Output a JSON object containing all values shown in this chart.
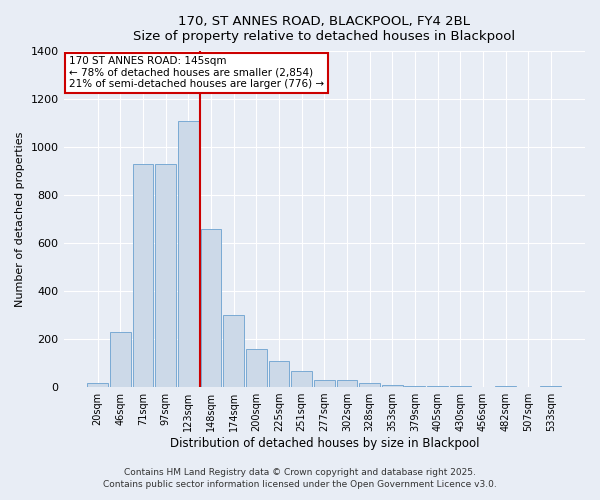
{
  "title_line1": "170, ST ANNES ROAD, BLACKPOOL, FY4 2BL",
  "title_line2": "Size of property relative to detached houses in Blackpool",
  "xlabel": "Distribution of detached houses by size in Blackpool",
  "ylabel": "Number of detached properties",
  "bar_labels": [
    "20sqm",
    "46sqm",
    "71sqm",
    "97sqm",
    "123sqm",
    "148sqm",
    "174sqm",
    "200sqm",
    "225sqm",
    "251sqm",
    "277sqm",
    "302sqm",
    "328sqm",
    "353sqm",
    "379sqm",
    "405sqm",
    "430sqm",
    "456sqm",
    "482sqm",
    "507sqm",
    "533sqm"
  ],
  "bar_values": [
    15,
    230,
    930,
    930,
    1110,
    660,
    300,
    160,
    110,
    65,
    30,
    30,
    15,
    10,
    5,
    5,
    5,
    0,
    5,
    0,
    5
  ],
  "bar_color": "#ccd9e8",
  "bar_edgecolor": "#7aaad4",
  "vline_color": "#cc0000",
  "annotation_title": "170 ST ANNES ROAD: 145sqm",
  "annotation_line2": "← 78% of detached houses are smaller (2,854)",
  "annotation_line3": "21% of semi-detached houses are larger (776) →",
  "annotation_box_color": "#ffffff",
  "annotation_box_edgecolor": "#cc0000",
  "ylim": [
    0,
    1400
  ],
  "yticks": [
    0,
    200,
    400,
    600,
    800,
    1000,
    1200,
    1400
  ],
  "footer_line1": "Contains HM Land Registry data © Crown copyright and database right 2025.",
  "footer_line2": "Contains public sector information licensed under the Open Government Licence v3.0.",
  "background_color": "#e8edf5",
  "plot_background": "#e8edf5",
  "grid_color": "#ffffff"
}
